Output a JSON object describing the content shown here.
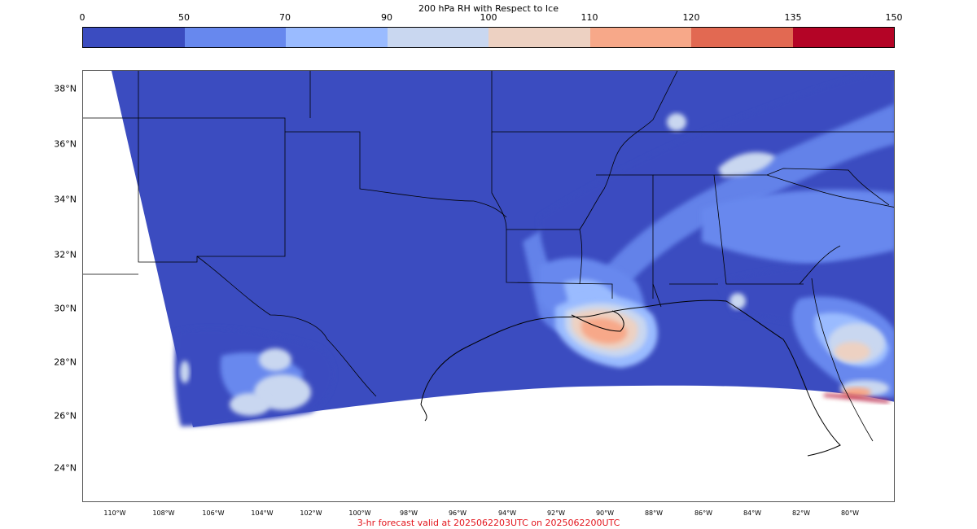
{
  "colorbar": {
    "title": "200 hPa RH with Respect to Ice",
    "ticks": [
      "0",
      "50",
      "70",
      "90",
      "100",
      "110",
      "120",
      "135",
      "150"
    ],
    "colors": [
      "#3b4cc0",
      "#6788ee",
      "#9abbff",
      "#c9d7f0",
      "#edd1c2",
      "#f7a889",
      "#e26952",
      "#b40426"
    ]
  },
  "map": {
    "lat_labels": [
      "38°N",
      "36°N",
      "34°N",
      "32°N",
      "30°N",
      "28°N",
      "26°N",
      "24°N"
    ],
    "lon_labels": [
      "110°W",
      "108°W",
      "106°W",
      "104°W",
      "102°W",
      "100°W",
      "98°W",
      "96°W",
      "94°W",
      "92°W",
      "90°W",
      "88°W",
      "86°W",
      "84°W",
      "82°W",
      "80°W"
    ],
    "background_color": "#3b4cc0",
    "border_color": "#000000"
  },
  "caption": "3-hr forecast valid at 2025062203UTC on 2025062200UTC"
}
